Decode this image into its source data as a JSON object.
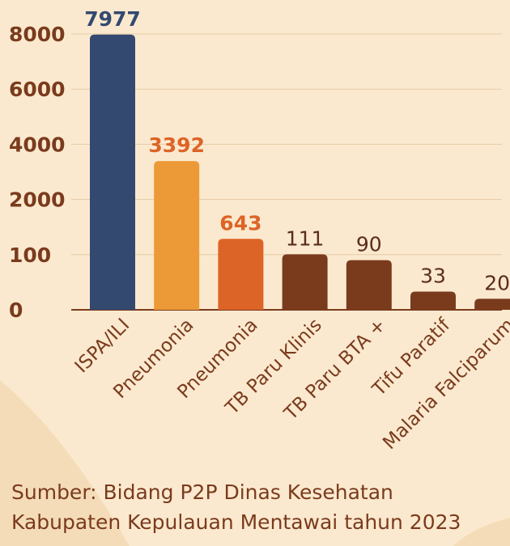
{
  "chart_data": {
    "type": "bar",
    "title": "",
    "xlabel": "",
    "ylabel": "",
    "y_tick_labels": [
      "0",
      "100",
      "2000",
      "4000",
      "6000",
      "8000"
    ],
    "categories": [
      "ISPA/ILI",
      "Pneumonia",
      "Pneumonia",
      "TB Paru Klinis",
      "TB Paru BTA +",
      "Tifu Paratif",
      "Malaria Falciparum"
    ],
    "values": [
      7977,
      3392,
      643,
      111,
      90,
      33,
      20
    ],
    "value_labels": [
      "7977",
      "3392",
      "643",
      "111",
      "90",
      "33",
      "20"
    ],
    "bar_colors": [
      "#33496f",
      "#ec9a37",
      "#dd6427",
      "#7a3b1d",
      "#7a3b1d",
      "#7a3b1d",
      "#7a3b1d"
    ],
    "label_colors": [
      "#33496f",
      "#dd6427",
      "#dd6427",
      "#5a2e1a",
      "#5a2e1a",
      "#5a2e1a",
      "#5a2e1a"
    ],
    "axis_label_color": "#7a3b1d",
    "grid": true,
    "legend": "none"
  },
  "source": {
    "line1": "Sumber: Bidang P2P Dinas Kesehatan",
    "line2": "Kabupaten Kepulauan Mentawai tahun 2023"
  }
}
